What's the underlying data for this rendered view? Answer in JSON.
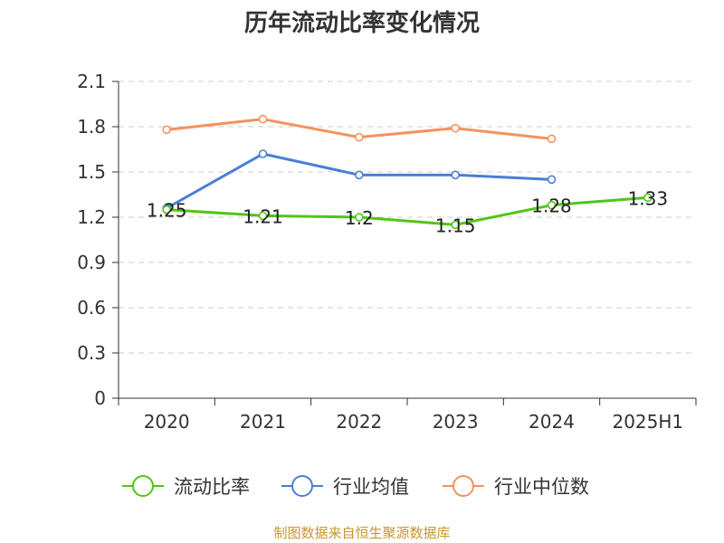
{
  "chart_data": {
    "type": "line",
    "title": "历年流动比率变化情况",
    "xlabel": "",
    "ylabel": "",
    "categories": [
      "2020",
      "2021",
      "2022",
      "2023",
      "2024",
      "2025H1"
    ],
    "ylim": [
      0,
      2.1
    ],
    "yticks": [
      "0",
      "0.3",
      "0.6",
      "0.9",
      "1.2",
      "1.5",
      "1.8",
      "2.1"
    ],
    "grid": true,
    "legend_position": "bottom",
    "series": [
      {
        "name": "流动比率",
        "color": "#52c41a",
        "values": [
          1.25,
          1.21,
          1.2,
          1.15,
          1.28,
          1.33
        ],
        "labels": [
          "1.25",
          "1.21",
          "1.2",
          "1.15",
          "1.28",
          "1.33"
        ]
      },
      {
        "name": "行业均值",
        "color": "#4a7fd4",
        "values": [
          1.26,
          1.62,
          1.48,
          1.48,
          1.45,
          null
        ]
      },
      {
        "name": "行业中位数",
        "color": "#f5925e",
        "values": [
          1.78,
          1.85,
          1.73,
          1.79,
          1.72,
          null
        ]
      }
    ]
  },
  "source": "制图数据来自恒生聚源数据库"
}
